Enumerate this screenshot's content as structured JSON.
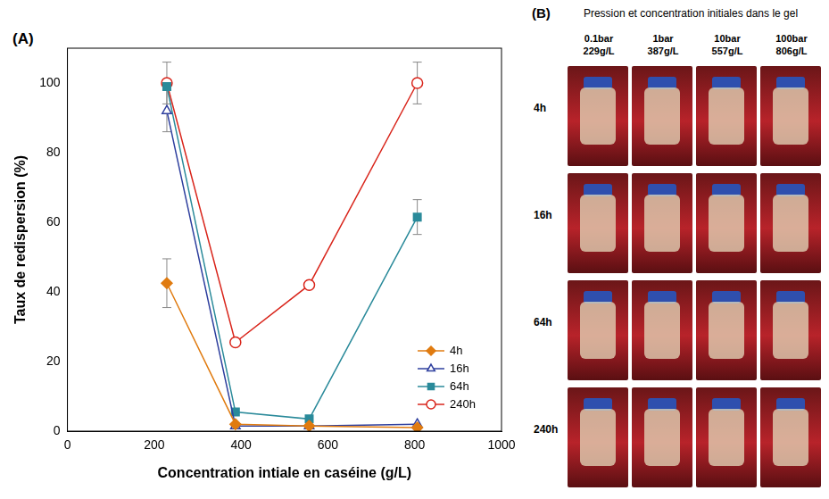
{
  "chart_data": {
    "type": "line",
    "panel_label": "(A)",
    "x_label": "Concentration intiale en caséine (g/L)",
    "y_label": "Taux de redispersion (%)",
    "xlim": [
      0,
      1000
    ],
    "xticks": [
      0,
      200,
      400,
      600,
      800,
      1000
    ],
    "ylim": [
      0,
      110
    ],
    "yticks": [
      0,
      20,
      40,
      60,
      80,
      100
    ],
    "grid": false,
    "legend": "lower right",
    "series": [
      {
        "name": "4h",
        "color": "#e07b10",
        "marker": "diamond",
        "line_style": "solid",
        "x": [
          229,
          387,
          557,
          806
        ],
        "values": [
          42.5,
          2,
          1.5,
          1
        ],
        "errors": [
          7,
          null,
          null,
          null
        ]
      },
      {
        "name": "16h",
        "color": "#2e3f9e",
        "marker": "open_triangle",
        "line_style": "solid",
        "x": [
          229,
          387,
          557,
          806
        ],
        "values": [
          92,
          1.5,
          1.5,
          2
        ],
        "errors": [
          6,
          null,
          null,
          null
        ]
      },
      {
        "name": "64h",
        "color": "#2a8a9a",
        "marker": "square",
        "line_style": "solid",
        "x": [
          229,
          387,
          557,
          806
        ],
        "values": [
          99,
          5.5,
          3.5,
          61.5
        ],
        "errors": [
          null,
          null,
          null,
          5
        ]
      },
      {
        "name": "240h",
        "color": "#d9261c",
        "marker": "open_circle",
        "line_style": "solid",
        "x": [
          229,
          387,
          557,
          806
        ],
        "values": [
          100,
          25.5,
          42,
          100
        ],
        "errors": [
          6,
          null,
          null,
          6
        ]
      }
    ]
  },
  "photo_panel": {
    "label": "(B)",
    "title": "Pression et concentration initiales dans le gel",
    "columns": [
      {
        "pressure": "0.1bar",
        "concentration": "229g/L"
      },
      {
        "pressure": "1bar",
        "concentration": "387g/L"
      },
      {
        "pressure": "10bar",
        "concentration": "557g/L"
      },
      {
        "pressure": "100bar",
        "concentration": "806g/L"
      }
    ],
    "rows": [
      "4h",
      "16h",
      "64h",
      "240h"
    ]
  }
}
